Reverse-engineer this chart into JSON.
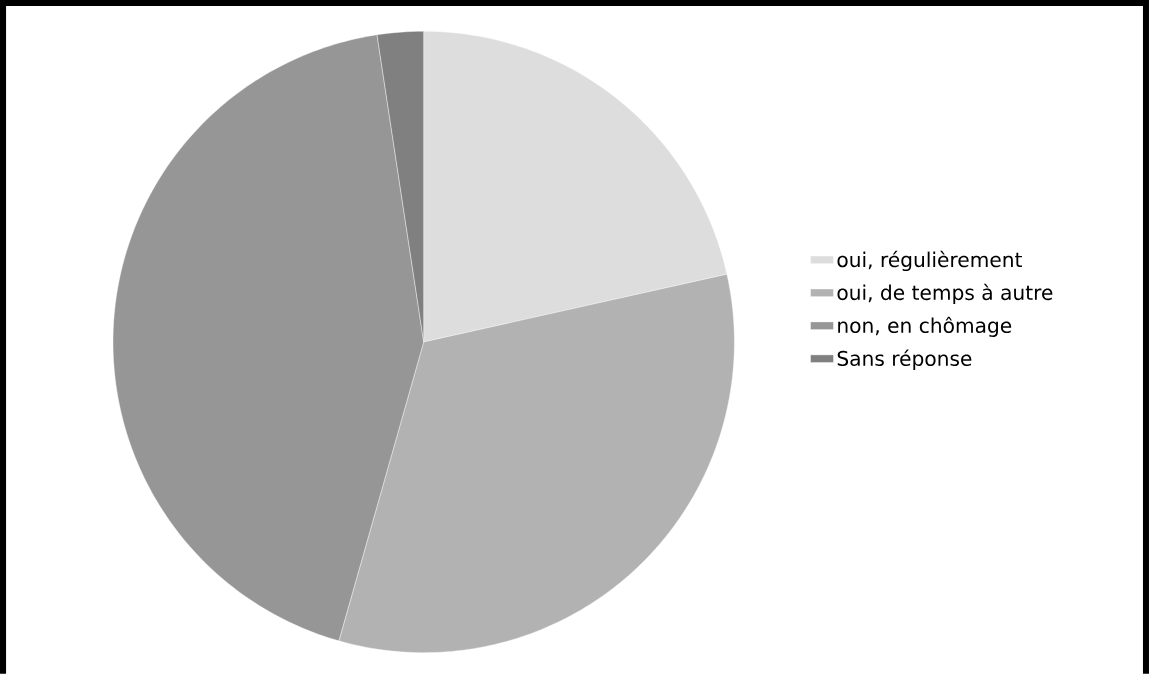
{
  "chart_data": {
    "type": "pie",
    "categories": [
      "oui, régulièrement",
      "oui, de temps à autre",
      "non, en chômage",
      "Sans réponse"
    ],
    "values": [
      21.5,
      32.9,
      43.2,
      2.4
    ],
    "colors": [
      "#dddddd",
      "#b2b2b2",
      "#969696",
      "#808080"
    ],
    "legend": "right"
  }
}
